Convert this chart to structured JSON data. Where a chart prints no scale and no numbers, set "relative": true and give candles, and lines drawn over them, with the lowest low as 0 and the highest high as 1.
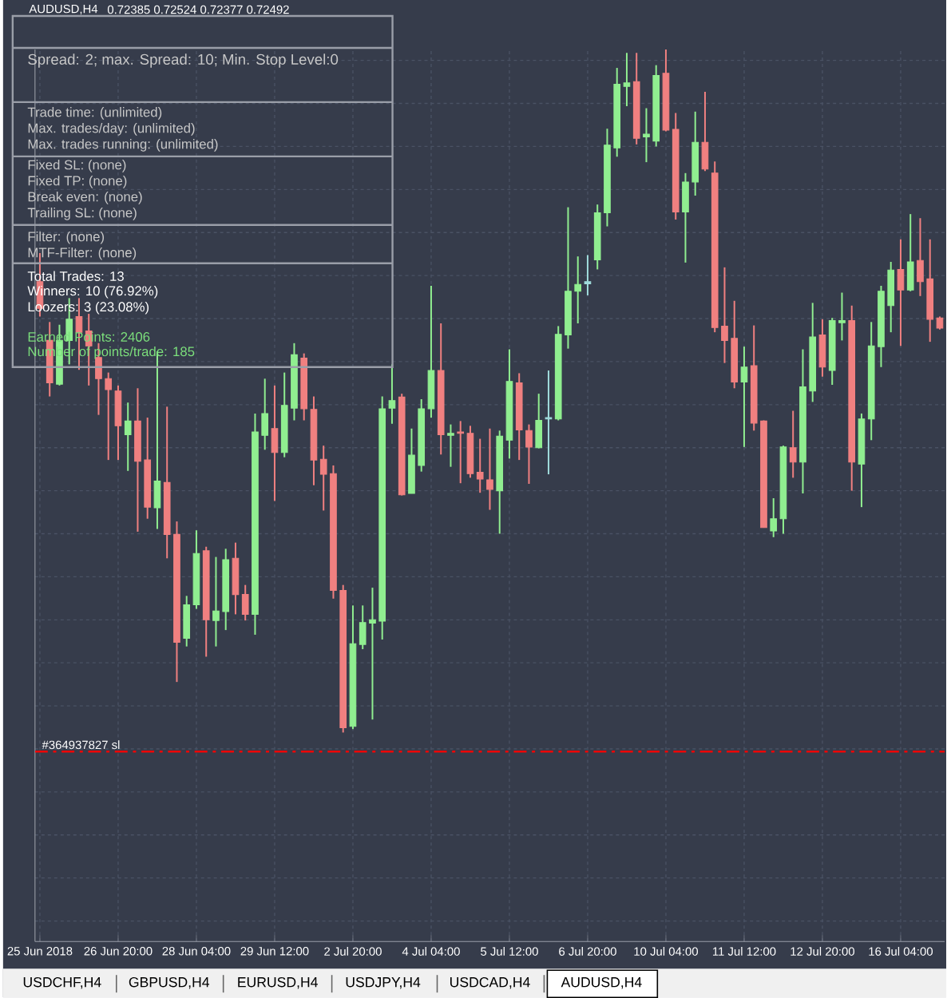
{
  "chart_data": {
    "type": "candlestick",
    "title": "AUDUSD,H4",
    "subtitle": "0.72385 0.72524 0.72377 0.72492",
    "relative": true,
    "grid": true,
    "categories": [
      "25 Jun 2018",
      null,
      null,
      null,
      null,
      null,
      null,
      null,
      "26 Jun 20:00",
      null,
      null,
      null,
      null,
      null,
      null,
      null,
      "28 Jun 04:00",
      null,
      null,
      null,
      null,
      null,
      null,
      null,
      "29 Jun 12:00",
      null,
      null,
      null,
      null,
      null,
      null,
      null,
      "2 Jul 20:00",
      null,
      null,
      null,
      null,
      null,
      null,
      null,
      "4 Jul 04:00",
      null,
      null,
      null,
      null,
      null,
      null,
      null,
      "5 Jul 12:00",
      null,
      null,
      null,
      null,
      null,
      null,
      null,
      "6 Jul 20:00",
      null,
      null,
      null,
      null,
      null,
      null,
      null,
      "10 Jul 04:00",
      null,
      null,
      null,
      null,
      null,
      null,
      null,
      "11 Jul 12:00",
      null,
      null,
      null,
      null,
      null,
      null,
      null,
      "12 Jul 20:00",
      null,
      null,
      null,
      null,
      null,
      null,
      null,
      "16 Jul 04:00",
      null,
      null,
      null,
      null
    ],
    "ohlc": [
      [
        0.66,
        0.702,
        0.609,
        0.621
      ],
      [
        0.574,
        0.601,
        0.492,
        0.512
      ],
      [
        0.51,
        0.597,
        0.508,
        0.574
      ],
      [
        0.574,
        0.636,
        0.539,
        0.605
      ],
      [
        0.609,
        0.636,
        0.531,
        0.586
      ],
      [
        0.588,
        0.613,
        0.508,
        0.566
      ],
      [
        0.549,
        0.57,
        0.465,
        0.518
      ],
      [
        0.518,
        0.527,
        0.399,
        0.502
      ],
      [
        0.5,
        0.508,
        0.399,
        0.449
      ],
      [
        0.436,
        0.483,
        0.383,
        0.456
      ],
      [
        0.456,
        0.504,
        0.294,
        0.397
      ],
      [
        0.399,
        0.461,
        0.313,
        0.33
      ],
      [
        0.329,
        0.558,
        0.298,
        0.368
      ],
      [
        0.366,
        0.477,
        0.255,
        0.29
      ],
      [
        0.29,
        0.309,
        0.074,
        0.132
      ],
      [
        0.138,
        0.2,
        0.126,
        0.187
      ],
      [
        0.187,
        0.296,
        0.181,
        0.262
      ],
      [
        0.266,
        0.272,
        0.111,
        0.165
      ],
      [
        0.164,
        0.257,
        0.126,
        0.178
      ],
      [
        0.177,
        0.269,
        0.15,
        0.253
      ],
      [
        0.255,
        0.278,
        0.173,
        0.202
      ],
      [
        0.202,
        0.216,
        0.164,
        0.173
      ],
      [
        0.173,
        0.467,
        0.143,
        0.44
      ],
      [
        0.435,
        0.518,
        0.414,
        0.467
      ],
      [
        0.445,
        0.508,
        0.339,
        0.41
      ],
      [
        0.41,
        0.527,
        0.403,
        0.479
      ],
      [
        0.475,
        0.57,
        0.457,
        0.553
      ],
      [
        0.548,
        0.555,
        0.457,
        0.474
      ],
      [
        0.473,
        0.492,
        0.362,
        0.399
      ],
      [
        0.4,
        0.42,
        0.325,
        0.378
      ],
      [
        0.379,
        0.391,
        0.196,
        0.208
      ],
      [
        0.208,
        0.216,
        0,
        0.007
      ],
      [
        0.009,
        0.186,
        0.005,
        0.13
      ],
      [
        0.129,
        0.186,
        0.122,
        0.161
      ],
      [
        0.16,
        0.212,
        0.019,
        0.165
      ],
      [
        0.163,
        0.492,
        0.136,
        0.474
      ],
      [
        0.475,
        0.539,
        0.452,
        0.486
      ],
      [
        0.491,
        0.496,
        0.347,
        0.348
      ],
      [
        0.35,
        0.445,
        0.35,
        0.406
      ],
      [
        0.391,
        0.488,
        0.382,
        0.474
      ],
      [
        0.474,
        0.654,
        0.461,
        0.53
      ],
      [
        0.53,
        0.599,
        0.407,
        0.436
      ],
      [
        0.435,
        0.451,
        0.389,
        0.438
      ],
      [
        0.44,
        0.456,
        0.365,
        0.438
      ],
      [
        0.438,
        0.449,
        0.373,
        0.379
      ],
      [
        0.381,
        0.43,
        0.351,
        0.371
      ],
      [
        0.37,
        0.445,
        0.326,
        0.356
      ],
      [
        0.354,
        0.442,
        0.291,
        0.434
      ],
      [
        0.428,
        0.561,
        0.401,
        0.514
      ],
      [
        0.512,
        0.526,
        0.399,
        0.443
      ],
      [
        0.442,
        0.451,
        0.364,
        0.418
      ],
      [
        0.417,
        0.496,
        0.416,
        0.457
      ],
      [
        0.459,
        0.53,
        0.378,
        0.461
      ],
      [
        0.459,
        0.595,
        0.457,
        0.583
      ],
      [
        0.582,
        0.769,
        0.562,
        0.646
      ],
      [
        0.646,
        0.697,
        0.599,
        0.656
      ],
      [
        0.657,
        0.699,
        0.64,
        0.66
      ],
      [
        0.692,
        0.773,
        0.678,
        0.761
      ],
      [
        0.761,
        0.884,
        0.741,
        0.86
      ],
      [
        0.856,
        0.973,
        0.843,
        0.949
      ],
      [
        0.946,
        0.995,
        0.917,
        0.951
      ],
      [
        0.953,
        0.995,
        0.861,
        0.87
      ],
      [
        0.872,
        0.914,
        0.835,
        0.876
      ],
      [
        0.866,
        0.977,
        0.858,
        0.962
      ],
      [
        0.965,
        1,
        0.88,
        0.882
      ],
      [
        0.883,
        0.907,
        0.751,
        0.762
      ],
      [
        0.762,
        0.819,
        0.688,
        0.806
      ],
      [
        0.806,
        0.909,
        0.786,
        0.864
      ],
      [
        0.864,
        0.938,
        0.822,
        0.825
      ],
      [
        0.819,
        0.836,
        0.586,
        0.593
      ],
      [
        0.595,
        0.681,
        0.541,
        0.574
      ],
      [
        0.577,
        0.632,
        0.504,
        0.513
      ],
      [
        0.513,
        0.565,
        0.418,
        0.535
      ],
      [
        0.537,
        0.596,
        0.442,
        0.453
      ],
      [
        0.456,
        0.457,
        0.3,
        0.3
      ],
      [
        0.295,
        0.343,
        0.286,
        0.313
      ],
      [
        0.313,
        0.42,
        0.291,
        0.418
      ],
      [
        0.417,
        0.471,
        0.373,
        0.396
      ],
      [
        0.396,
        0.561,
        0.35,
        0.506
      ],
      [
        0.5,
        0.629,
        0.484,
        0.579
      ],
      [
        0.582,
        0.605,
        0.521,
        0.535
      ],
      [
        0.53,
        0.607,
        0.509,
        0.603
      ],
      [
        0.6,
        0.644,
        0.574,
        0.603
      ],
      [
        0.603,
        0.625,
        0.354,
        0.396
      ],
      [
        0.393,
        0.467,
        0.33,
        0.459
      ],
      [
        0.459,
        0.601,
        0.428,
        0.566
      ],
      [
        0.565,
        0.654,
        0.535,
        0.646
      ],
      [
        0.625,
        0.689,
        0.586,
        0.677
      ],
      [
        0.678,
        0.722,
        0.566,
        0.648
      ],
      [
        0.648,
        0.759,
        0.646,
        0.689
      ],
      [
        0.691,
        0.753,
        0.639,
        0.66
      ],
      [
        0.664,
        0.722,
        0.572,
        0.605
      ],
      [
        0.607,
        0.609,
        0.59,
        0.592
      ]
    ],
    "colors": [
      "#f08080",
      "#f08080",
      "#90ee90",
      "#90ee90",
      "#f08080",
      "#f08080",
      "#f08080",
      "#f08080",
      "#f08080",
      "#90ee90",
      "#f08080",
      "#f08080",
      "#90ee90",
      "#f08080",
      "#f08080",
      "#90ee90",
      "#90ee90",
      "#f08080",
      "#90ee90",
      "#90ee90",
      "#f08080",
      "#f08080",
      "#90ee90",
      "#90ee90",
      "#f08080",
      "#90ee90",
      "#90ee90",
      "#f08080",
      "#f08080",
      "#f08080",
      "#f08080",
      "#f08080",
      "#90ee90",
      "#90ee90",
      "#90ee90",
      "#90ee90",
      "#90ee90",
      "#f08080",
      "#90ee90",
      "#90ee90",
      "#90ee90",
      "#f08080",
      "#90ee90",
      "#f08080",
      "#f08080",
      "#f08080",
      "#f08080",
      "#90ee90",
      "#90ee90",
      "#f08080",
      "#f08080",
      "#90ee90",
      "#a0dcdc",
      "#90ee90",
      "#90ee90",
      "#90ee90",
      "#a0dcdc",
      "#90ee90",
      "#90ee90",
      "#90ee90",
      "#90ee90",
      "#f08080",
      "#90ee90",
      "#90ee90",
      "#f08080",
      "#f08080",
      "#90ee90",
      "#90ee90",
      "#f08080",
      "#f08080",
      "#f08080",
      "#f08080",
      "#90ee90",
      "#f08080",
      "#f08080",
      "#90ee90",
      "#90ee90",
      "#f08080",
      "#90ee90",
      "#90ee90",
      "#f08080",
      "#90ee90",
      "#90ee90",
      "#f08080",
      "#90ee90",
      "#90ee90",
      "#90ee90",
      "#90ee90",
      "#f08080",
      "#90ee90",
      "#f08080",
      "#f08080",
      "#f08080"
    ],
    "ref_lines": [
      {
        "axis": "y",
        "value": -0.028,
        "label": "#364937827 sl",
        "color": "#ff0000",
        "line_style": "dashed"
      }
    ],
    "annotations": [
      "Spread: 2; max. Spread: 10; Min. Stop Level:0",
      "Trade time: (unlimited)",
      "Max. trades/day: (unlimited)",
      "Max. trades running: (unlimited)",
      "Fixed SL: (none)",
      "Fixed TP: (none)",
      "Break even: (none)",
      "Trailing SL: (none)",
      "Filter: (none)",
      "MTF-Filter: (none)",
      "Total Trades: 13",
      "Winners: 10  (76.92%)",
      "Loozers: 3  (23.08%)",
      "Earned Points: 2406",
      "Number of points/trade: 185",
      "USDCHF,H4",
      "GBPUSD,H4",
      "EURUSD,H4",
      "USDJPY,H4",
      "USDCAD,H4",
      "AUDUSD,H4"
    ]
  }
}
